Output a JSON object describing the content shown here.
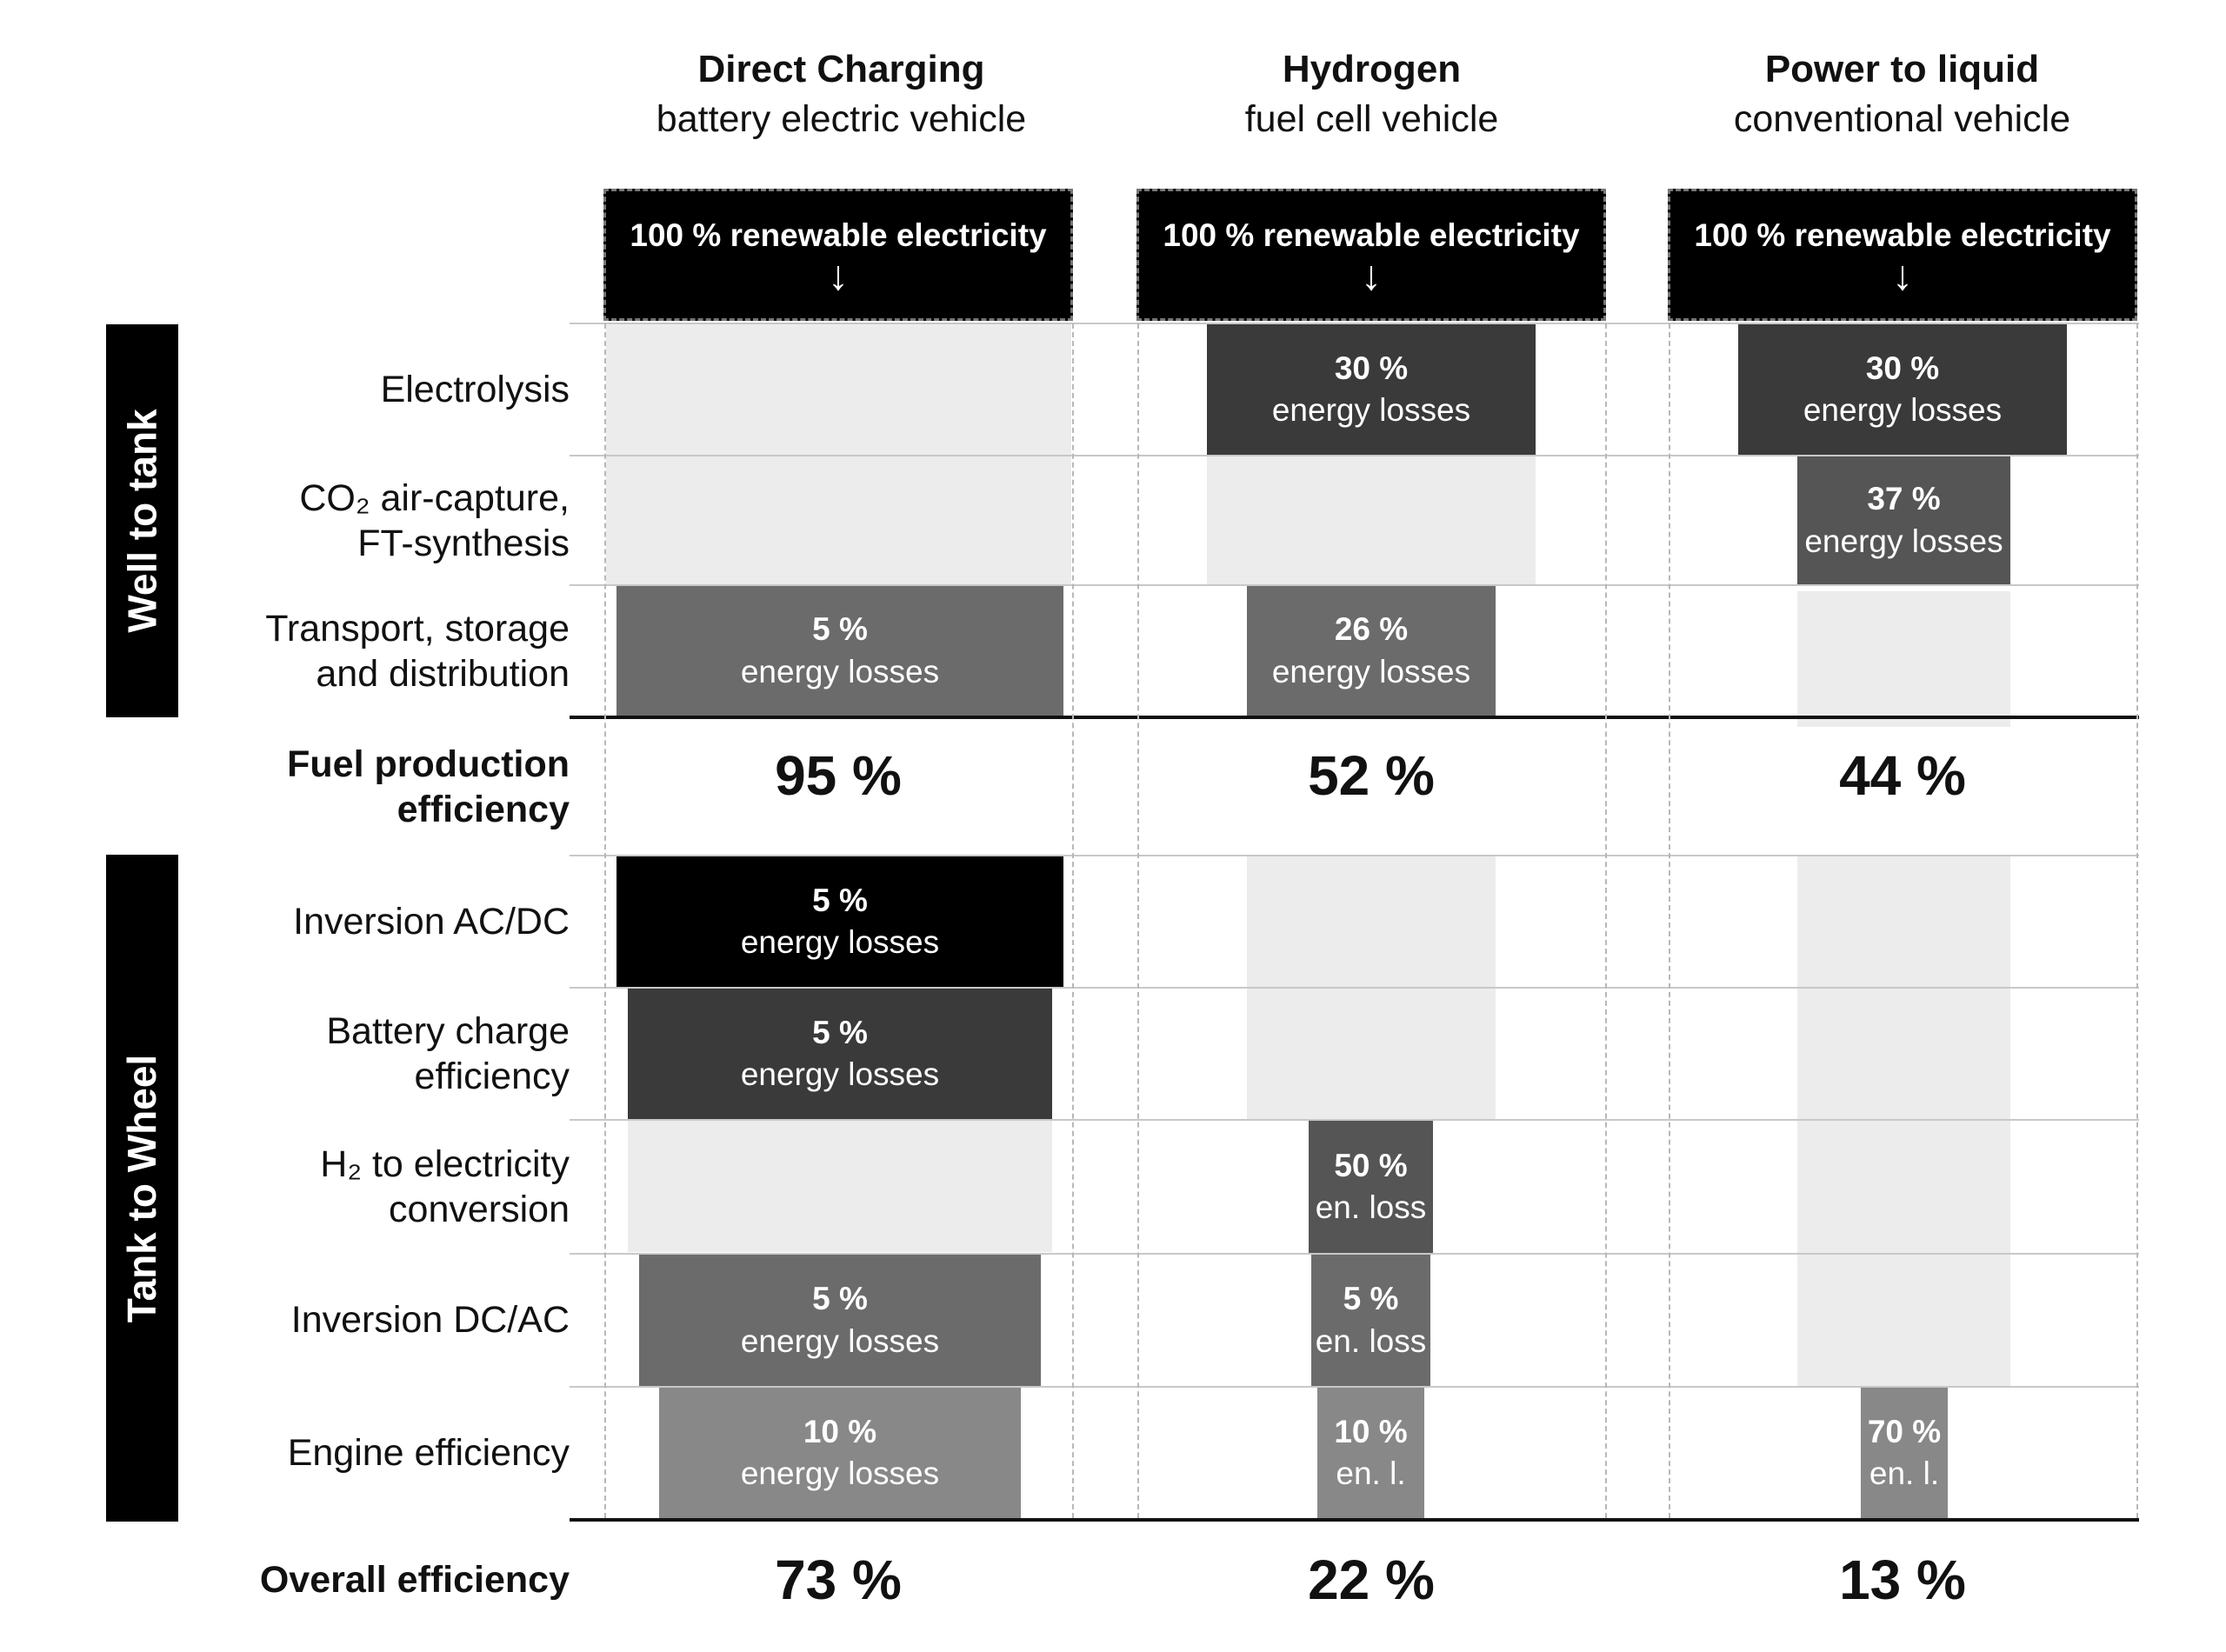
{
  "columns": [
    {
      "title": "Direct Charging",
      "subtitle": "battery electric vehicle",
      "source": "100 % renewable electricity",
      "arrow": "↓",
      "fuel_efficiency": "95 %",
      "overall": "73 %"
    },
    {
      "title": "Hydrogen",
      "subtitle": "fuel cell vehicle",
      "source": "100 % renewable electricity",
      "arrow": "↓",
      "fuel_efficiency": "52 %",
      "overall": "22 %"
    },
    {
      "title": "Power to liquid",
      "subtitle": "conventional vehicle",
      "source": "100 % renewable electricity",
      "arrow": "↓",
      "fuel_efficiency": "44 %",
      "overall": "13 %"
    }
  ],
  "sections": {
    "well_to_tank": "Well to tank",
    "tank_to_wheel": "Tank to Wheel"
  },
  "rows": {
    "electrolysis": "Electrolysis",
    "co2_line1": "CO₂ air-capture,",
    "co2_line2": "FT-synthesis",
    "transport_line1": "Transport, storage",
    "transport_line2": "and distribution",
    "fuel_line1": "Fuel production",
    "fuel_line2": "efficiency",
    "inv_acdc": "Inversion AC/DC",
    "battery_line1": "Battery charge",
    "battery_line2": "efficiency",
    "h2_line1": "H₂ to electricity",
    "h2_line2": "conversion",
    "inv_dcac": "Inversion DC/AC",
    "engine": "Engine efficiency",
    "overall": "Overall efficiency"
  },
  "cells": {
    "dc_transport": {
      "pct": "5 %",
      "label": "energy losses"
    },
    "dc_inv_acdc": {
      "pct": "5 %",
      "label": "energy losses"
    },
    "dc_battery": {
      "pct": "5 %",
      "label": "energy losses"
    },
    "dc_inv_dcac": {
      "pct": "5 %",
      "label": "energy losses"
    },
    "dc_engine": {
      "pct": "10 %",
      "label": "energy losses"
    },
    "h_electrolysis": {
      "pct": "30 %",
      "label": "energy losses"
    },
    "h_transport": {
      "pct": "26 %",
      "label": "energy losses"
    },
    "h_h2conv": {
      "pct": "50 %",
      "label": "en. loss"
    },
    "h_inv_dcac": {
      "pct": "5 %",
      "label": "en. loss"
    },
    "h_engine": {
      "pct": "10 %",
      "label": "en. l."
    },
    "p_electrolysis": {
      "pct": "30 %",
      "label": "energy losses"
    },
    "p_co2": {
      "pct": "37 %",
      "label": "energy losses"
    },
    "p_engine": {
      "pct": "70 %",
      "label": "en. l."
    }
  },
  "colors": {
    "black": "#000000",
    "dark": "#3a3a3a",
    "darkgrey": "#555555",
    "midgrey": "#6b6b6b",
    "lightgrey": "#888888",
    "placeholder": "#ececec"
  }
}
